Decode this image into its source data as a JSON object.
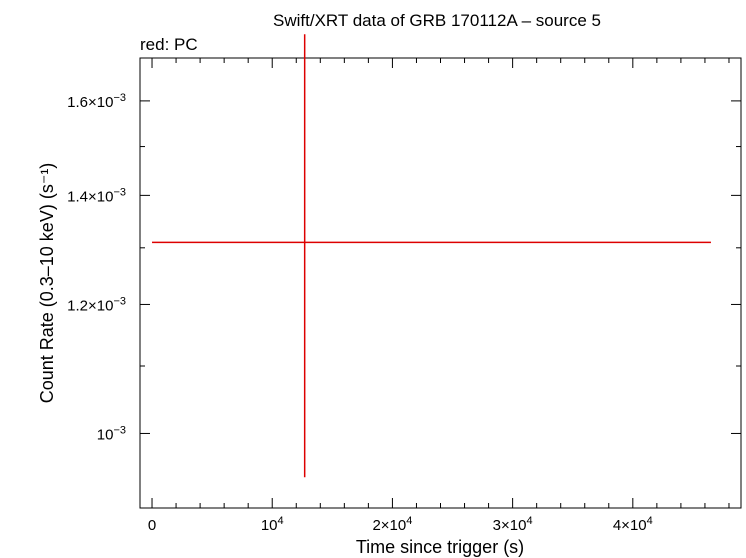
{
  "chart_data": {
    "type": "scatter",
    "title": "Swift/XRT data of GRB 170112A – source 5",
    "subtitle": "red: PC",
    "xlabel": "Time since trigger (s)",
    "ylabel": "Count Rate (0.3–10 keV) (s⁻¹)",
    "xlim": [
      -1000,
      49000
    ],
    "ylim": [
      0.0009,
      0.0017
    ],
    "grid": false,
    "x_ticks": [
      {
        "value": 0,
        "mantissa": "0",
        "exp": ""
      },
      {
        "value": 10000,
        "mantissa": "10",
        "exp": "4"
      },
      {
        "value": 20000,
        "mantissa": "2×10",
        "exp": "4"
      },
      {
        "value": 30000,
        "mantissa": "3×10",
        "exp": "4"
      },
      {
        "value": 40000,
        "mantissa": "4×10",
        "exp": "4"
      }
    ],
    "y_ticks": [
      {
        "value": 0.001,
        "mantissa": "10",
        "exp": "−3"
      },
      {
        "value": 0.0012,
        "mantissa": "1.2×10",
        "exp": "−3"
      },
      {
        "value": 0.0014,
        "mantissa": "1.4×10",
        "exp": "−3"
      },
      {
        "value": 0.0016,
        "mantissa": "1.6×10",
        "exp": "−3"
      }
    ],
    "series": [
      {
        "name": "PC",
        "color": "#dd0000",
        "points": [
          {
            "x": 12700,
            "y": 0.00131,
            "x_lo": 0,
            "x_hi": 46500,
            "y_lo": 0.00094,
            "y_hi": 0.001758
          }
        ]
      }
    ]
  }
}
